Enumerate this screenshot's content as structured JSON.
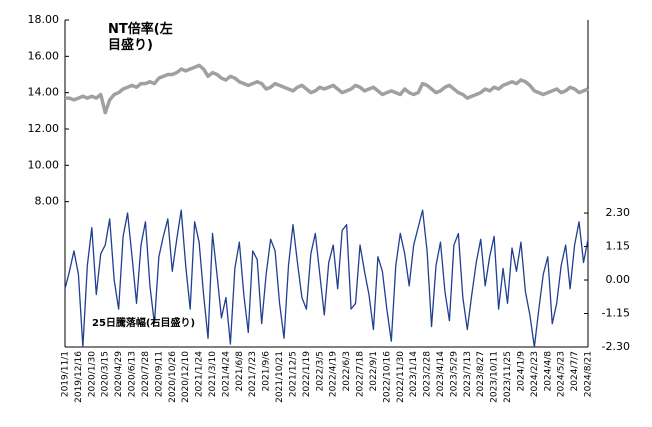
{
  "chart_data": {
    "type": "line",
    "annotations": [
      "NT倍率(左目盛り)",
      "25日騰落幅(右目盛り)"
    ],
    "categories": [
      "2019/11/1",
      null,
      null,
      "2019/12/16",
      null,
      null,
      "2020/1/30",
      null,
      null,
      "2020/3/15",
      null,
      null,
      "2020/4/29",
      null,
      null,
      "2020/6/13",
      null,
      null,
      "2020/7/28",
      null,
      null,
      "2020/9/11",
      null,
      null,
      "2020/10/26",
      null,
      null,
      "2020/12/10",
      null,
      null,
      "2021/1/24",
      null,
      null,
      "2021/3/10",
      null,
      null,
      "2021/4/24",
      null,
      null,
      "2021/6/8",
      null,
      null,
      "2021/7/23",
      null,
      null,
      "2021/9/6",
      null,
      null,
      "2021/10/21",
      null,
      null,
      "2021/12/5",
      null,
      null,
      "2022/1/19",
      null,
      null,
      "2022/3/5",
      null,
      null,
      "2022/4/19",
      null,
      null,
      "2022/6/3",
      null,
      null,
      "2022/7/18",
      null,
      null,
      "2022/9/1",
      null,
      null,
      "2022/10/16",
      null,
      null,
      "2022/11/30",
      null,
      null,
      "2023/1/14",
      null,
      null,
      "2023/2/28",
      null,
      null,
      "2023/4/14",
      null,
      null,
      "2023/5/29",
      null,
      null,
      "2023/7/13",
      null,
      null,
      "2023/8/27",
      null,
      null,
      "2023/10/11",
      null,
      null,
      "2023/11/25",
      null,
      null,
      "2024/1/9",
      null,
      null,
      "2024/2/23",
      null,
      null,
      "2024/4/8",
      null,
      null,
      "2024/5/23",
      null,
      null,
      "2024/7/7",
      null,
      null,
      "2024/8/21"
    ],
    "series": [
      {
        "name": "NT倍率",
        "color": "#a0a0a0",
        "values": [
          13.7,
          13.7,
          13.6,
          13.7,
          13.8,
          13.7,
          13.8,
          13.7,
          13.9,
          12.9,
          13.6,
          13.9,
          14.0,
          14.2,
          14.3,
          14.4,
          14.3,
          14.5,
          14.5,
          14.6,
          14.5,
          14.8,
          14.9,
          15.0,
          15.0,
          15.1,
          15.3,
          15.2,
          15.3,
          15.4,
          15.5,
          15.3,
          14.9,
          15.1,
          15.0,
          14.8,
          14.7,
          14.9,
          14.8,
          14.6,
          14.5,
          14.4,
          14.5,
          14.6,
          14.5,
          14.2,
          14.3,
          14.5,
          14.4,
          14.3,
          14.2,
          14.1,
          14.3,
          14.4,
          14.2,
          14.0,
          14.1,
          14.3,
          14.2,
          14.3,
          14.4,
          14.2,
          14.0,
          14.1,
          14.2,
          14.4,
          14.3,
          14.1,
          14.2,
          14.3,
          14.1,
          13.9,
          14.0,
          14.1,
          14.0,
          13.9,
          14.2,
          14.0,
          13.9,
          14.0,
          14.5,
          14.4,
          14.2,
          14.0,
          14.1,
          14.3,
          14.4,
          14.2,
          14.0,
          13.9,
          13.7,
          13.8,
          13.9,
          14.0,
          14.2,
          14.1,
          14.3,
          14.2,
          14.4,
          14.5,
          14.6,
          14.5,
          14.7,
          14.6,
          14.4,
          14.1,
          14.0,
          13.9,
          14.0,
          14.1,
          14.2,
          14.0,
          14.1,
          14.3,
          14.2,
          14.0,
          14.1,
          14.2
        ]
      },
      {
        "name": "25日騰落幅",
        "color": "#1f3f8f",
        "axis": "y2",
        "values": [
          -0.3,
          0.3,
          1.0,
          0.2,
          -2.3,
          0.5,
          1.8,
          -0.5,
          0.9,
          1.2,
          2.1,
          0.0,
          -1.0,
          1.5,
          2.3,
          0.8,
          -0.8,
          1.2,
          2.0,
          -0.2,
          -1.5,
          0.8,
          1.5,
          2.1,
          0.3,
          1.4,
          2.4,
          0.5,
          -1.0,
          2.0,
          1.3,
          -0.5,
          -2.0,
          1.6,
          0.2,
          -1.3,
          -0.6,
          -2.2,
          0.4,
          1.3,
          -0.5,
          -1.8,
          1.0,
          0.7,
          -1.5,
          0.2,
          1.4,
          1.0,
          -0.8,
          -2.0,
          0.5,
          1.9,
          0.6,
          -0.6,
          -1.0,
          0.9,
          1.6,
          0.2,
          -1.2,
          0.6,
          1.2,
          -0.3,
          1.7,
          1.9,
          -1.0,
          -0.8,
          1.2,
          0.3,
          -0.5,
          -1.7,
          0.8,
          0.3,
          -1.0,
          -2.1,
          0.5,
          1.6,
          0.9,
          -0.2,
          1.2,
          1.8,
          2.4,
          1.0,
          -1.6,
          0.5,
          1.3,
          -0.4,
          -1.4,
          1.2,
          1.6,
          -0.6,
          -1.7,
          -0.5,
          0.6,
          1.4,
          -0.2,
          0.8,
          1.5,
          -1.0,
          0.4,
          -0.8,
          1.1,
          0.3,
          1.3,
          -0.4,
          -1.2,
          -2.3,
          -1.0,
          0.2,
          0.8,
          -1.5,
          -0.8,
          0.5,
          1.2,
          -0.3,
          1.2,
          2.0,
          0.6,
          1.4
        ]
      }
    ],
    "ylim": [
      0,
      18
    ],
    "yticks": [
      {
        "value": 8,
        "label": "8.00"
      },
      {
        "value": 10,
        "label": "10.00"
      },
      {
        "value": 12,
        "label": "12.00"
      },
      {
        "value": 14,
        "label": "14.00"
      },
      {
        "value": 16,
        "label": "16.00"
      },
      {
        "value": 18,
        "label": "18.00"
      }
    ],
    "y2lim": [
      -2.3,
      8.93
    ],
    "y2ticks": [
      {
        "value": -2.3,
        "label": "-2.30"
      },
      {
        "value": -1.15,
        "label": "-1.15"
      },
      {
        "value": 0,
        "label": "0.00"
      },
      {
        "value": 1.15,
        "label": "1.15"
      },
      {
        "value": 2.3,
        "label": "2.30"
      }
    ],
    "grid": false
  }
}
